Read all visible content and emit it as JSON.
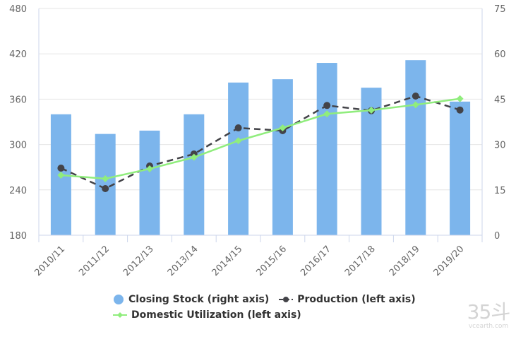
{
  "chart_data": {
    "type": "bar-line-combo",
    "title": "",
    "categories": [
      "2010/11",
      "2011/12",
      "2012/13",
      "2013/14",
      "2014/15",
      "2015/16",
      "2016/17",
      "2017/18",
      "2018/19",
      "2019/20"
    ],
    "series": [
      {
        "name": "Closing Stock (right axis)",
        "type": "bar",
        "axis": "right",
        "color": "#7cb5ec",
        "values": [
          40.0,
          33.5,
          34.6,
          40.0,
          50.5,
          51.6,
          57.0,
          48.8,
          57.9,
          44.2
        ]
      },
      {
        "name": "Production (left axis)",
        "type": "line",
        "style": "dashed",
        "marker": "circle",
        "axis": "left",
        "color": "#434348",
        "values": [
          268.8,
          241.7,
          271.6,
          287.5,
          322.0,
          318.3,
          351.7,
          344.8,
          364.1,
          345.7
        ]
      },
      {
        "name": "Domestic Utilization (left axis)",
        "type": "line",
        "style": "solid",
        "marker": "diamond",
        "axis": "left",
        "color": "#90ed7d",
        "values": [
          259.4,
          254.8,
          267.9,
          283.1,
          305.0,
          322.0,
          340.5,
          345.4,
          352.6,
          360.6
        ]
      }
    ],
    "left_axis": {
      "min": 180,
      "max": 480,
      "ticks": [
        "180",
        "240",
        "300",
        "360",
        "420",
        "480"
      ]
    },
    "right_axis": {
      "min": 0,
      "max": 75,
      "ticks": [
        "0",
        "15",
        "30",
        "45",
        "60",
        "75"
      ]
    },
    "grid": true,
    "legend_position": "bottom"
  },
  "watermark": {
    "logo": "35斗",
    "url": "vcearth.com"
  }
}
